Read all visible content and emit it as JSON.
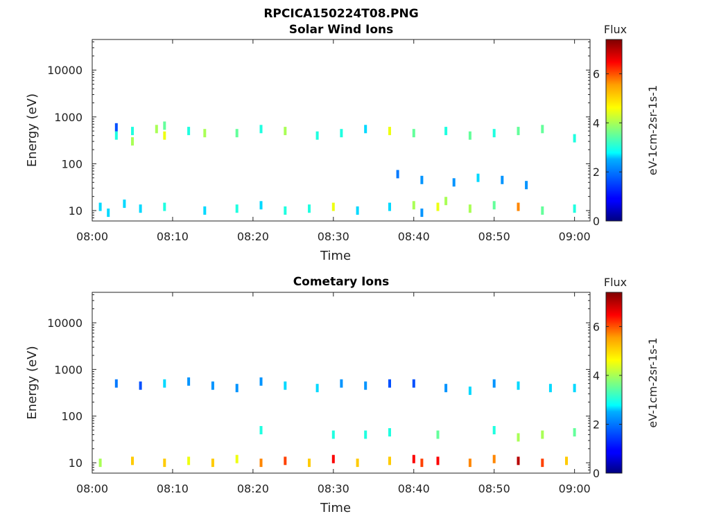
{
  "figure_title": "RPCICA150224T08.PNG",
  "chart_data": [
    {
      "type": "heatmap",
      "title": "Solar Wind Ions",
      "xlabel": "Time",
      "ylabel": "Energy (eV)",
      "x_ticks": [
        "08:00",
        "08:10",
        "08:20",
        "08:30",
        "08:40",
        "08:50",
        "09:00"
      ],
      "x_range_minutes": [
        0,
        61
      ],
      "y_scale": "log",
      "y_range": [
        6,
        45000
      ],
      "y_ticks": [
        10,
        100,
        1000,
        10000
      ],
      "y_tick_labels": [
        "10",
        "100",
        "1000",
        "10000"
      ],
      "colorbar": {
        "title": "Flux",
        "label": "eV-1cm-2sr-1s-1",
        "range": [
          0,
          7.4
        ],
        "ticks": [
          0,
          2,
          4,
          6
        ],
        "tick_labels": [
          "0",
          "2",
          "4",
          "6"
        ],
        "colormap": "jet"
      },
      "cells": [
        [
          3,
          600,
          1.5
        ],
        [
          3,
          400,
          3
        ],
        [
          5,
          500,
          3
        ],
        [
          5,
          300,
          4
        ],
        [
          8,
          550,
          4
        ],
        [
          9,
          400,
          4.5
        ],
        [
          9,
          650,
          3.5
        ],
        [
          12,
          500,
          3
        ],
        [
          14,
          450,
          4
        ],
        [
          18,
          450,
          3.5
        ],
        [
          21,
          550,
          3
        ],
        [
          24,
          500,
          4
        ],
        [
          28,
          400,
          3
        ],
        [
          31,
          450,
          3
        ],
        [
          34,
          550,
          2.5
        ],
        [
          37,
          500,
          4.5
        ],
        [
          40,
          450,
          3.5
        ],
        [
          44,
          500,
          3
        ],
        [
          47,
          400,
          3.5
        ],
        [
          50,
          450,
          3
        ],
        [
          53,
          500,
          3.5
        ],
        [
          56,
          550,
          3.5
        ],
        [
          60,
          350,
          3
        ],
        [
          1,
          12,
          2.5
        ],
        [
          2,
          9,
          2.5
        ],
        [
          4,
          14,
          2.5
        ],
        [
          6,
          11,
          2.5
        ],
        [
          9,
          12,
          3
        ],
        [
          14,
          10,
          2.5
        ],
        [
          18,
          11,
          3
        ],
        [
          21,
          13,
          2.5
        ],
        [
          24,
          10,
          3
        ],
        [
          27,
          11,
          3
        ],
        [
          30,
          12,
          4.5
        ],
        [
          33,
          10,
          2.5
        ],
        [
          37,
          12,
          2.5
        ],
        [
          40,
          13,
          4
        ],
        [
          41,
          9,
          2
        ],
        [
          43,
          12,
          4.5
        ],
        [
          44,
          16,
          4
        ],
        [
          47,
          11,
          4
        ],
        [
          50,
          13,
          3.5
        ],
        [
          53,
          12,
          5.5
        ],
        [
          56,
          10,
          3.5
        ],
        [
          60,
          11,
          3
        ],
        [
          38,
          60,
          1.8
        ],
        [
          41,
          45,
          2
        ],
        [
          45,
          40,
          2
        ],
        [
          48,
          50,
          2.5
        ],
        [
          51,
          45,
          2
        ],
        [
          54,
          35,
          2
        ]
      ]
    },
    {
      "type": "heatmap",
      "title": "Cometary Ions",
      "xlabel": "Time",
      "ylabel": "Energy (eV)",
      "x_ticks": [
        "08:00",
        "08:10",
        "08:20",
        "08:30",
        "08:40",
        "08:50",
        "09:00"
      ],
      "x_range_minutes": [
        0,
        61
      ],
      "y_scale": "log",
      "y_range": [
        6,
        45000
      ],
      "y_ticks": [
        10,
        100,
        1000,
        10000
      ],
      "y_tick_labels": [
        "10",
        "100",
        "1000",
        "10000"
      ],
      "colorbar": {
        "title": "Flux",
        "label": "eV-1cm-2sr-1s-1",
        "range": [
          0,
          7.4
        ],
        "ticks": [
          0,
          2,
          4,
          6
        ],
        "tick_labels": [
          "0",
          "2",
          "4",
          "6"
        ],
        "colormap": "jet"
      },
      "cells": [
        [
          1,
          10,
          4
        ],
        [
          5,
          11,
          5
        ],
        [
          9,
          10,
          5
        ],
        [
          12,
          11,
          4.5
        ],
        [
          15,
          10,
          5
        ],
        [
          18,
          12,
          4.5
        ],
        [
          21,
          10,
          5.5
        ],
        [
          24,
          11,
          6
        ],
        [
          27,
          10,
          5
        ],
        [
          30,
          12,
          6.5
        ],
        [
          33,
          10,
          5
        ],
        [
          37,
          11,
          5
        ],
        [
          40,
          12,
          6.5
        ],
        [
          41,
          10,
          6
        ],
        [
          43,
          11,
          6.5
        ],
        [
          47,
          10,
          5.5
        ],
        [
          50,
          12,
          5.5
        ],
        [
          53,
          11,
          7
        ],
        [
          56,
          10,
          6
        ],
        [
          59,
          11,
          5
        ],
        [
          3,
          500,
          1.8
        ],
        [
          6,
          450,
          1.5
        ],
        [
          9,
          500,
          2.5
        ],
        [
          12,
          550,
          2
        ],
        [
          15,
          450,
          2
        ],
        [
          18,
          400,
          2
        ],
        [
          21,
          550,
          2
        ],
        [
          24,
          450,
          2.5
        ],
        [
          28,
          400,
          2.5
        ],
        [
          31,
          500,
          2
        ],
        [
          34,
          450,
          2
        ],
        [
          37,
          500,
          1.5
        ],
        [
          40,
          500,
          1.5
        ],
        [
          44,
          400,
          2
        ],
        [
          47,
          350,
          2.5
        ],
        [
          50,
          500,
          2
        ],
        [
          53,
          450,
          2.5
        ],
        [
          57,
          400,
          2.5
        ],
        [
          60,
          400,
          2.5
        ],
        [
          21,
          50,
          3
        ],
        [
          30,
          40,
          3
        ],
        [
          34,
          40,
          3
        ],
        [
          37,
          45,
          3
        ],
        [
          43,
          40,
          3.5
        ],
        [
          50,
          50,
          3
        ],
        [
          53,
          35,
          4
        ],
        [
          56,
          40,
          4
        ],
        [
          60,
          45,
          3.5
        ]
      ]
    }
  ]
}
